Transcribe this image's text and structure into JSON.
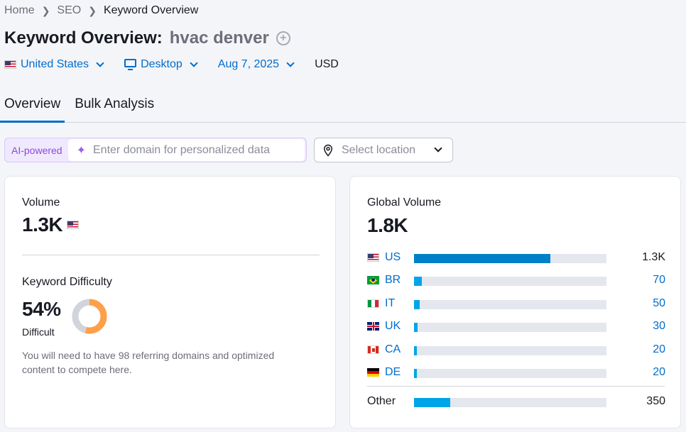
{
  "breadcrumb": {
    "items": [
      "Home",
      "SEO"
    ],
    "current": "Keyword Overview"
  },
  "header": {
    "title": "Keyword Overview:",
    "keyword": "hvac denver"
  },
  "filters": {
    "country": "United States",
    "device": "Desktop",
    "date": "Aug 7, 2025",
    "currency": "USD"
  },
  "tabs": [
    {
      "label": "Overview",
      "active": true
    },
    {
      "label": "Bulk Analysis",
      "active": false
    }
  ],
  "ai": {
    "badge": "AI-powered",
    "placeholder": "Enter domain for personalized data"
  },
  "location": {
    "placeholder": "Select location"
  },
  "volume": {
    "label": "Volume",
    "value": "1.3K",
    "flag": "us-flag-icon"
  },
  "keyword_difficulty": {
    "label": "Keyword Difficulty",
    "value": "54%",
    "percent": 54,
    "level": "Difficult",
    "description": "You will need to have 98 referring domains and optimized content to compete here.",
    "colors": {
      "fill": "#ff9f48",
      "track": "#d1d4db"
    }
  },
  "global_volume": {
    "label": "Global Volume",
    "value": "1.8K",
    "countries": [
      {
        "code": "US",
        "flag": "flag-us",
        "value": "1.3K",
        "share": 0.71,
        "primary": true
      },
      {
        "code": "BR",
        "flag": "flag-br",
        "value": "70",
        "share": 0.04
      },
      {
        "code": "IT",
        "flag": "flag-it",
        "value": "50",
        "share": 0.03
      },
      {
        "code": "UK",
        "flag": "flag-uk",
        "value": "30",
        "share": 0.017
      },
      {
        "code": "CA",
        "flag": "flag-ca",
        "value": "20",
        "share": 0.013
      },
      {
        "code": "DE",
        "flag": "flag-de",
        "value": "20",
        "share": 0.013
      }
    ],
    "other": {
      "label": "Other",
      "value": "350",
      "share": 0.19
    }
  },
  "colors": {
    "accent": "#006dca",
    "bar_primary": "#0081c7",
    "bar": "#00a5e8",
    "ai_purple": "#8a4cdb"
  }
}
